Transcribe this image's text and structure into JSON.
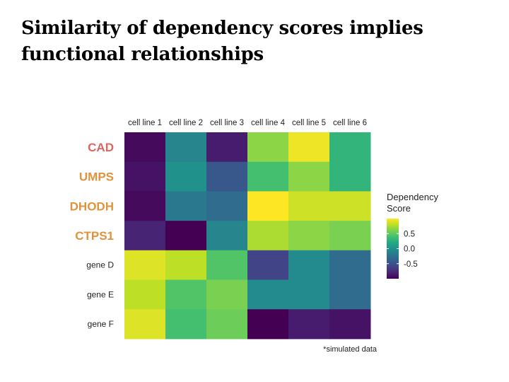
{
  "title": "Similarity of dependency scores implies functional relationships",
  "note": "*simulated data",
  "chart_data": {
    "type": "heatmap",
    "columns": [
      "cell line 1",
      "cell line 2",
      "cell line 3",
      "cell line 4",
      "cell line 5",
      "cell line 6"
    ],
    "rows": [
      {
        "label": "CAD",
        "color": "#d9675f",
        "bold": true,
        "values": [
          -0.95,
          -0.1,
          -0.85,
          0.65,
          0.95,
          0.3
        ]
      },
      {
        "label": "UMPS",
        "color": "#e0923d",
        "bold": true,
        "values": [
          -0.9,
          0.0,
          -0.45,
          0.4,
          0.65,
          0.3
        ]
      },
      {
        "label": "DHODH",
        "color": "#e0923d",
        "bold": true,
        "values": [
          -0.95,
          -0.2,
          -0.3,
          1.0,
          0.85,
          0.85
        ]
      },
      {
        "label": "CTPS1",
        "color": "#e0923d",
        "bold": true,
        "values": [
          -0.8,
          -1.0,
          -0.1,
          0.75,
          0.65,
          0.6
        ]
      },
      {
        "label": "gene D",
        "color": "#222222",
        "bold": false,
        "values": [
          0.9,
          0.8,
          0.45,
          -0.6,
          -0.05,
          -0.3
        ]
      },
      {
        "label": "gene E",
        "color": "#222222",
        "bold": false,
        "values": [
          0.8,
          0.45,
          0.6,
          -0.05,
          -0.05,
          -0.3
        ]
      },
      {
        "label": "gene F",
        "color": "#222222",
        "bold": false,
        "values": [
          0.9,
          0.4,
          0.55,
          -1.0,
          -0.85,
          -0.9
        ]
      }
    ],
    "colorscale": "viridis",
    "range": [
      -1.0,
      1.0
    ],
    "legend": {
      "title_line1": "Dependency",
      "title_line2": "Score",
      "ticks": [
        0.5,
        0.0,
        -0.5
      ],
      "tick_labels": [
        "0.5",
        "0.0",
        "-0.5"
      ],
      "position": "right"
    }
  }
}
